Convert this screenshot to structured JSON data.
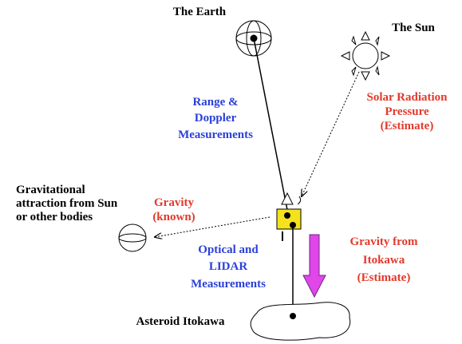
{
  "labels": [
    {
      "lines": [
        "The Earth"
      ]
    },
    {
      "lines": [
        "The Sun"
      ]
    },
    {
      "lines": [
        "Range &",
        "Doppler",
        "Measurements"
      ]
    },
    {
      "lines": [
        "Solar Radiation",
        "Pressure",
        "(Estimate)"
      ]
    },
    {
      "lines": [
        "Gravitational",
        "attraction from Sun",
        "or other bodies"
      ]
    },
    {
      "lines": [
        "Gravity",
        "(known)"
      ]
    },
    {
      "lines": [
        "Optical and",
        "LIDAR",
        "Measurements"
      ]
    },
    {
      "lines": [
        "Gravity from",
        "Itokawa",
        "(Estimate)"
      ]
    },
    {
      "lines": [
        "Asteroid Itokawa"
      ]
    }
  ]
}
